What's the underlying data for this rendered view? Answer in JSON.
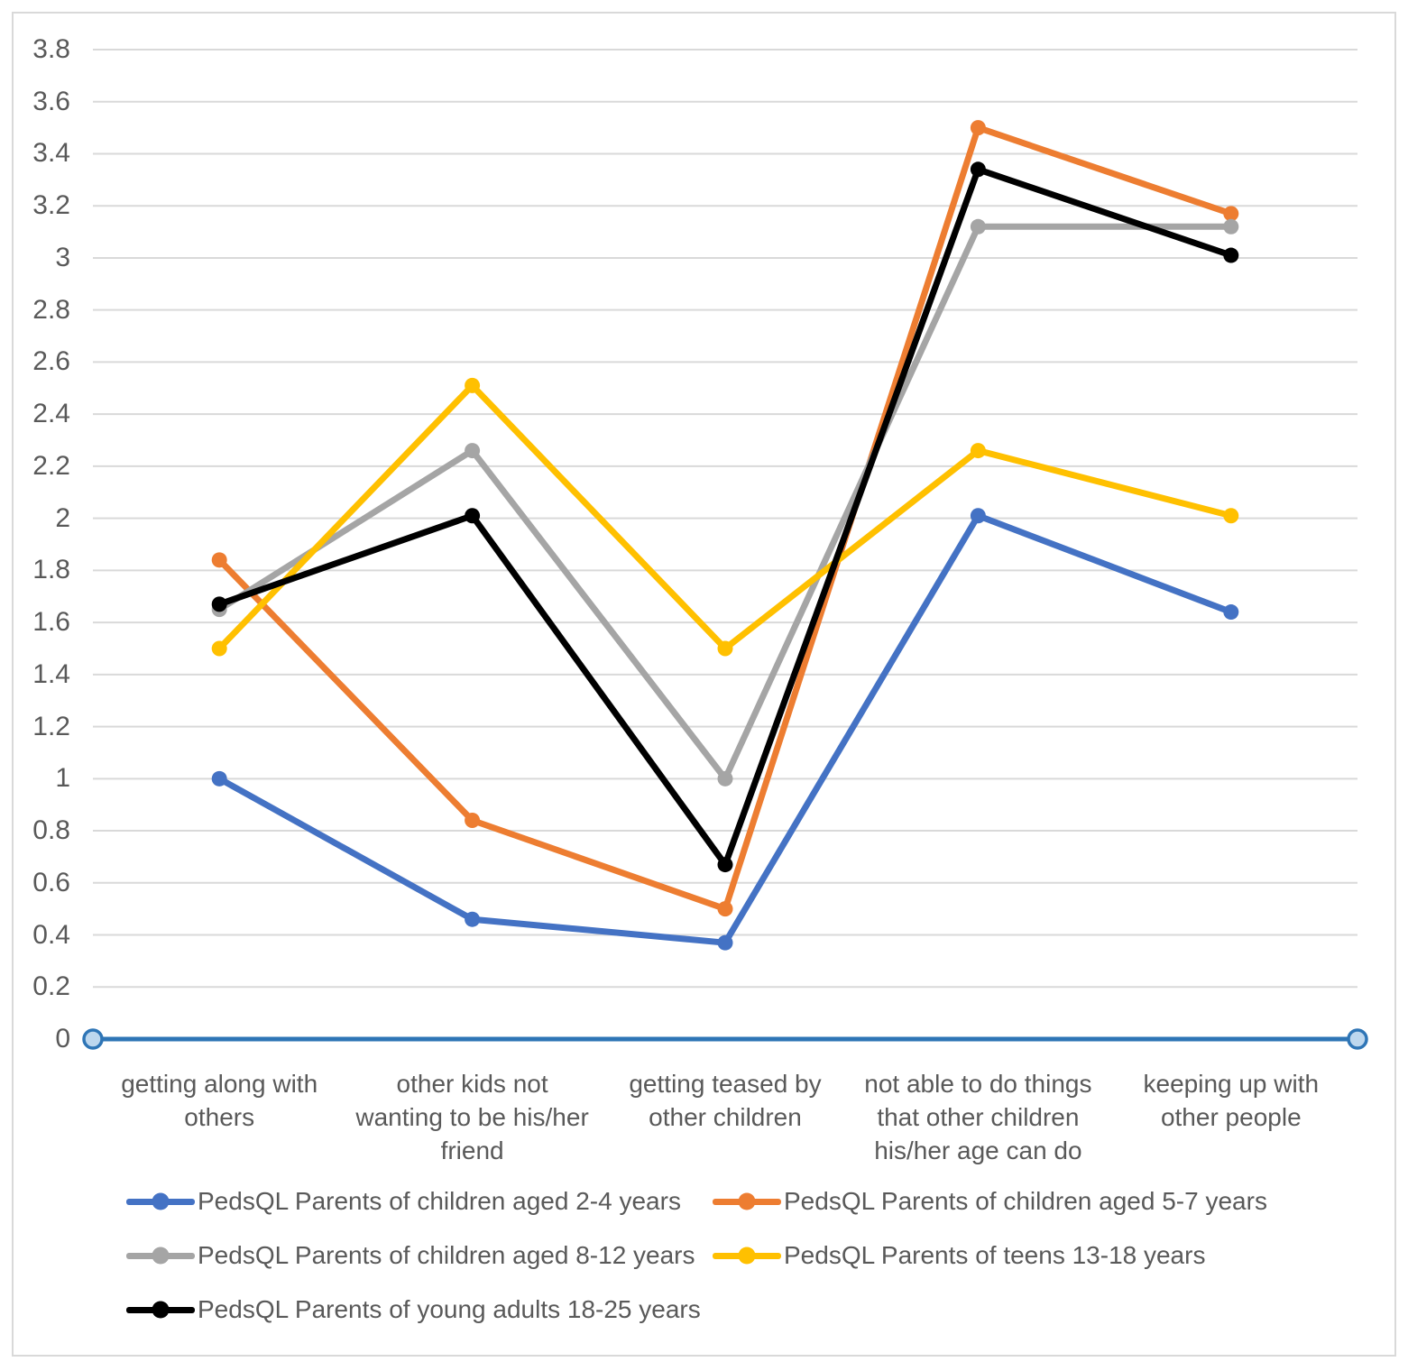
{
  "chart_data": {
    "type": "line",
    "title": "",
    "xlabel": "",
    "ylabel": "",
    "ylim": [
      0,
      3.8
    ],
    "grid": true,
    "legend_position": "bottom",
    "categories": [
      "getting along with others",
      "other kids not wanting to be his/her friend",
      "getting teased by other children",
      "not able to do things that other children his/her age can do",
      "keeping up with other people"
    ],
    "category_label_lines": [
      [
        "getting along with",
        "others"
      ],
      [
        "other kids not",
        "wanting to be his/her",
        "friend"
      ],
      [
        "getting teased by",
        "other children"
      ],
      [
        "not able to do things",
        "that other children",
        "his/her age can do"
      ],
      [
        "keeping up with",
        "other people"
      ]
    ],
    "series": [
      {
        "name": "PedsQL Parents of children aged 2-4 years",
        "color": "#4472C4",
        "values": [
          1.0,
          0.46,
          0.37,
          2.01,
          1.64
        ]
      },
      {
        "name": "PedsQL Parents of children aged 5-7 years",
        "color": "#ED7D31",
        "values": [
          1.84,
          0.84,
          0.5,
          3.5,
          3.17
        ]
      },
      {
        "name": "PedsQL Parents of children aged 8-12 years",
        "color": "#A5A5A5",
        "values": [
          1.65,
          2.26,
          1.0,
          3.12,
          3.12
        ]
      },
      {
        "name": "PedsQL Parents of teens 13-18 years",
        "color": "#FFC000",
        "values": [
          1.5,
          2.51,
          1.5,
          2.26,
          2.01
        ]
      },
      {
        "name": "PedsQL Parents of young adults 18-25 years",
        "color": "#000000",
        "values": [
          1.67,
          2.01,
          0.67,
          3.34,
          3.01
        ]
      }
    ],
    "y_axis": {
      "min": 0,
      "max": 3.8,
      "step": 0.2,
      "tick_labels": [
        "3.8",
        "3.6",
        "3.4",
        "3.2",
        "3",
        "2.8",
        "2.6",
        "2.4",
        "2.2",
        "2",
        "1.8",
        "1.6",
        "1.4",
        "1.2",
        "1",
        "0.8",
        "0.6",
        "0.4",
        "0.2",
        "0"
      ]
    },
    "x_axis": {
      "baseline_value": 0,
      "line_color": "#2E75B6",
      "endpoint_marker_fill": "#BDD7EE",
      "endpoint_marker_stroke": "#2E75B6"
    },
    "gridline_color": "#D9D9D9",
    "text_color": "#595959",
    "border_color": "#D9D9D9"
  }
}
